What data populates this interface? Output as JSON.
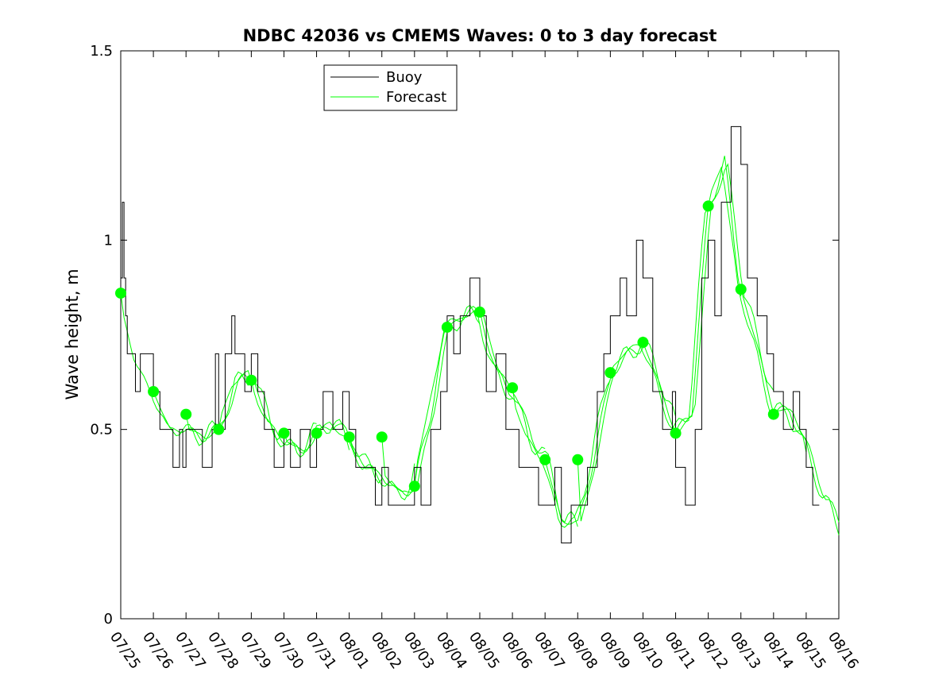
{
  "chart_data": {
    "type": "line",
    "title": "NDBC 42036 vs CMEMS Waves: 0 to 3 day forecast",
    "xlabel": "",
    "ylabel": "Wave height, m",
    "x_tick_labels": [
      "07/25",
      "07/26",
      "07/27",
      "07/28",
      "07/29",
      "07/30",
      "07/31",
      "08/01",
      "08/02",
      "08/03",
      "08/04",
      "08/05",
      "08/06",
      "08/07",
      "08/08",
      "08/09",
      "08/10",
      "08/11",
      "08/12",
      "08/13",
      "08/14",
      "08/15",
      "08/16"
    ],
    "y_tick_labels": [
      "0",
      "0.5",
      "1",
      "1.5"
    ],
    "xlim": [
      "07/25",
      "08/16"
    ],
    "ylim": [
      0,
      1.5
    ],
    "grid": false,
    "legend": {
      "placement": "top-center",
      "entries": [
        "Buoy",
        "Forecast"
      ]
    },
    "colors": {
      "buoy": "#000000",
      "forecast": "#00ff00"
    },
    "series": [
      {
        "name": "Buoy",
        "x": [
          "07/25",
          "07/25",
          "07/25",
          "07/25",
          "07/25",
          "07/25",
          "07/25",
          "07/25",
          "07/25",
          "07/26",
          "07/26",
          "07/26",
          "07/26",
          "07/26",
          "07/26",
          "07/27",
          "07/27",
          "07/27",
          "07/27",
          "07/28",
          "07/28",
          "07/28",
          "07/28",
          "07/28",
          "07/28",
          "07/29",
          "07/29",
          "07/29",
          "07/29",
          "07/30",
          "07/30",
          "07/30",
          "07/30",
          "07/31",
          "07/31",
          "07/31",
          "07/31",
          "08/01",
          "08/01",
          "08/01",
          "08/01",
          "08/02",
          "08/02",
          "08/02",
          "08/02",
          "08/03",
          "08/03",
          "08/03",
          "08/03",
          "08/04",
          "08/04",
          "08/04",
          "08/04",
          "08/05",
          "08/05",
          "08/05",
          "08/05",
          "08/06",
          "08/06",
          "08/06",
          "08/06",
          "08/07",
          "08/07",
          "08/07",
          "08/07",
          "08/08",
          "08/08",
          "08/08",
          "08/08",
          "08/09",
          "08/09",
          "08/09",
          "08/09",
          "08/10",
          "08/10",
          "08/10",
          "08/10",
          "08/11",
          "08/11",
          "08/11",
          "08/11",
          "08/12",
          "08/12",
          "08/12",
          "08/12",
          "08/13",
          "08/13",
          "08/13",
          "08/13",
          "08/14",
          "08/14",
          "08/14",
          "08/14",
          "08/15",
          "08/15",
          "08/15"
        ],
        "x_day_offset": [
          0,
          0.05,
          0.1,
          0.15,
          0.2,
          0.3,
          0.45,
          0.6,
          0.8,
          1.0,
          1.2,
          1.4,
          1.6,
          1.8,
          1.9,
          2.0,
          2.2,
          2.5,
          2.8,
          2.9,
          3.0,
          3.2,
          3.4,
          3.5,
          3.8,
          4.0,
          4.2,
          4.4,
          4.7,
          5.0,
          5.2,
          5.5,
          5.8,
          6.0,
          6.2,
          6.5,
          6.8,
          7.0,
          7.2,
          7.5,
          7.8,
          8.0,
          8.2,
          8.5,
          8.8,
          9.0,
          9.2,
          9.5,
          9.8,
          10.0,
          10.2,
          10.4,
          10.7,
          11.0,
          11.2,
          11.5,
          11.8,
          12.0,
          12.2,
          12.5,
          12.8,
          13.0,
          13.3,
          13.5,
          13.8,
          14.0,
          14.3,
          14.6,
          14.8,
          15.0,
          15.3,
          15.5,
          15.8,
          16.0,
          16.3,
          16.6,
          16.9,
          17.0,
          17.3,
          17.6,
          17.8,
          18.0,
          18.2,
          18.4,
          18.7,
          19.0,
          19.2,
          19.5,
          19.8,
          20.0,
          20.3,
          20.6,
          20.8,
          21.0,
          21.2,
          21.4
        ],
        "values": [
          0.9,
          1.1,
          0.9,
          0.8,
          0.7,
          0.7,
          0.6,
          0.7,
          0.7,
          0.6,
          0.5,
          0.5,
          0.4,
          0.5,
          0.4,
          0.5,
          0.5,
          0.4,
          0.5,
          0.7,
          0.5,
          0.7,
          0.8,
          0.7,
          0.6,
          0.7,
          0.6,
          0.5,
          0.4,
          0.5,
          0.4,
          0.5,
          0.4,
          0.5,
          0.6,
          0.5,
          0.6,
          0.5,
          0.4,
          0.4,
          0.3,
          0.4,
          0.3,
          0.3,
          0.3,
          0.4,
          0.3,
          0.5,
          0.6,
          0.8,
          0.7,
          0.8,
          0.9,
          0.8,
          0.6,
          0.7,
          0.5,
          0.5,
          0.4,
          0.4,
          0.3,
          0.3,
          0.4,
          0.2,
          0.3,
          0.3,
          0.4,
          0.6,
          0.7,
          0.8,
          0.9,
          0.8,
          1.0,
          0.9,
          0.6,
          0.5,
          0.6,
          0.4,
          0.3,
          0.5,
          0.9,
          1.0,
          0.8,
          1.1,
          1.3,
          1.2,
          0.9,
          0.8,
          0.7,
          0.6,
          0.5,
          0.6,
          0.5,
          0.4,
          0.3,
          0.3
        ]
      },
      {
        "name": "Forecast",
        "x_day_offset": [
          0,
          0.5,
          1,
          1.5,
          2,
          2.5,
          3,
          3.5,
          4,
          4.5,
          5,
          5.5,
          6,
          6.5,
          7,
          7.5,
          8,
          8.5,
          9,
          9.5,
          10,
          10.5,
          11,
          11.5,
          12,
          12.5,
          13,
          13.5,
          14,
          14.5,
          15,
          15.5,
          16,
          16.5,
          17,
          17.5,
          18,
          18.5,
          19,
          19.5,
          20,
          20.5,
          21,
          21.5,
          22
        ],
        "values": [
          0.86,
          0.68,
          0.6,
          0.5,
          0.5,
          0.48,
          0.5,
          0.62,
          0.65,
          0.52,
          0.47,
          0.44,
          0.49,
          0.52,
          0.47,
          0.4,
          0.38,
          0.33,
          0.35,
          0.55,
          0.77,
          0.8,
          0.81,
          0.65,
          0.6,
          0.48,
          0.42,
          0.26,
          0.25,
          0.42,
          0.65,
          0.7,
          0.73,
          0.62,
          0.49,
          0.55,
          1.09,
          1.2,
          0.87,
          0.72,
          0.55,
          0.55,
          0.45,
          0.32,
          0.25
        ]
      }
    ],
    "forecast_markers": {
      "x": [
        "07/25",
        "07/26",
        "07/27",
        "07/28",
        "07/29",
        "07/30",
        "07/31",
        "08/01",
        "08/02",
        "08/03",
        "08/04",
        "08/05",
        "08/06",
        "08/07",
        "08/08",
        "08/09",
        "08/10",
        "08/11",
        "08/12",
        "08/13",
        "08/14"
      ],
      "values": [
        0.86,
        0.6,
        0.54,
        0.5,
        0.63,
        0.49,
        0.49,
        0.48,
        0.48,
        0.35,
        0.77,
        0.81,
        0.61,
        0.42,
        0.42,
        0.65,
        0.73,
        0.49,
        1.09,
        0.87,
        0.54
      ]
    }
  }
}
